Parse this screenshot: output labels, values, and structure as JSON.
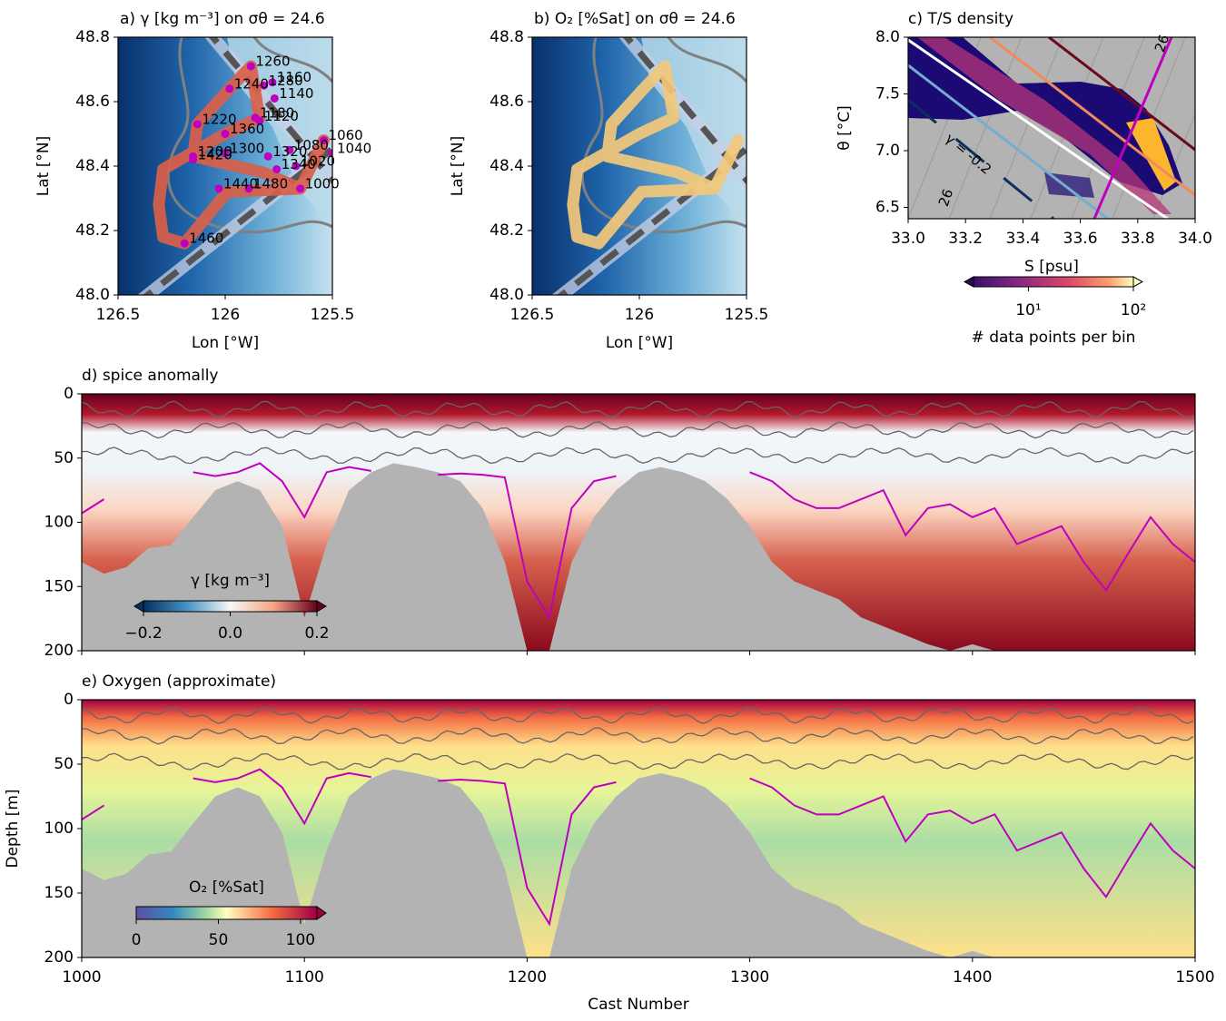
{
  "chart_data": [
    {
      "type": "map",
      "title": "a) γ [kg m⁻³] on σθ = 24.6",
      "xlabel": "Lon [°W]",
      "ylabel": "Lat [°N]",
      "xlim": [
        126.5,
        125.5
      ],
      "xticks": [
        126.5,
        126,
        125.5
      ],
      "ylim": [
        48.0,
        48.8
      ],
      "yticks": [
        {
          "value": 48,
          "label": "48.0"
        },
        48.2,
        48.4,
        48.6,
        48.8
      ],
      "track": {
        "color": "#d9604a",
        "x": [
          125.54,
          125.65,
          125.82,
          126.15,
          126.13,
          125.98,
          125.88,
          125.84,
          126.0,
          126.29,
          126.31,
          126.29,
          126.19,
          125.99,
          125.65
        ],
        "y": [
          48.48,
          48.33,
          48.38,
          48.43,
          48.53,
          48.64,
          48.71,
          48.55,
          48.5,
          48.39,
          48.28,
          48.18,
          48.16,
          48.32,
          48.33
        ]
      },
      "points": {
        "color": "#c000c0",
        "labels": [
          "1260",
          "1280",
          "1240",
          "1160",
          "1140",
          "1180",
          "1120",
          "1220",
          "1360",
          "1060",
          "1080",
          "1040",
          "1200",
          "1420",
          "1320",
          "1300",
          "1020",
          "1340",
          "1440",
          "1480",
          "1000",
          "1460"
        ],
        "x": [
          125.88,
          125.82,
          125.98,
          125.78,
          125.77,
          125.86,
          125.84,
          126.13,
          126.0,
          125.54,
          125.7,
          125.5,
          126.15,
          126.15,
          125.8,
          126.0,
          125.67,
          125.76,
          126.03,
          125.89,
          125.65,
          126.19
        ],
        "y": [
          48.71,
          48.65,
          48.64,
          48.66,
          48.61,
          48.55,
          48.54,
          48.53,
          48.5,
          48.48,
          48.45,
          48.44,
          48.43,
          48.42,
          48.43,
          48.44,
          48.4,
          48.39,
          48.33,
          48.33,
          48.33,
          48.16
        ]
      }
    },
    {
      "type": "map",
      "title": "b) O₂ [%Sat] on σθ = 24.6",
      "xlabel": "Lon [°W]",
      "ylabel": "Lat [°N]",
      "xlim": [
        126.5,
        125.5
      ],
      "xticks": [
        126.5,
        126,
        125.5
      ],
      "ylim": [
        48.0,
        48.8
      ],
      "yticks": [
        {
          "value": 48,
          "label": "48.0"
        },
        48.2,
        48.4,
        48.6,
        48.8
      ],
      "track": {
        "color": "#f3c87a",
        "x": [
          125.54,
          125.65,
          125.82,
          126.15,
          126.13,
          125.98,
          125.88,
          125.84,
          126.0,
          126.29,
          126.31,
          126.29,
          126.19,
          125.99,
          125.65
        ],
        "y": [
          48.48,
          48.33,
          48.38,
          48.43,
          48.53,
          48.64,
          48.71,
          48.55,
          48.5,
          48.39,
          48.28,
          48.18,
          48.16,
          48.32,
          48.33
        ]
      }
    },
    {
      "type": "histogram2d",
      "title": "c) T/S density",
      "xlabel": "S [psu]",
      "ylabel": "θ [°C]",
      "xlim": [
        33,
        34
      ],
      "xticks": [
        {
          "value": 33,
          "label": "33.0"
        },
        33.2,
        33.4,
        33.6,
        33.8,
        {
          "value": 34,
          "label": "34.0"
        }
      ],
      "ylim": [
        6.4,
        8.0
      ],
      "yticks": [
        6.5,
        {
          "value": 7,
          "label": "7.0"
        },
        7.5,
        {
          "value": 8,
          "label": "8.0"
        }
      ],
      "annotations": [
        "26",
        "γ = -0.2",
        "26"
      ],
      "colorbar": {
        "label": "# data points per bin",
        "log": true,
        "lim": [
          3,
          100
        ],
        "ticks": [
          {
            "value": 10,
            "label": "10¹"
          },
          {
            "value": 100,
            "label": "10²"
          }
        ]
      }
    },
    {
      "type": "section",
      "title": "d) spice anomally",
      "xticklabels": false,
      "xlim": [
        1000,
        1500
      ],
      "xticks": [
        1000,
        1100,
        1200,
        1300,
        1400,
        1500
      ],
      "ylim": [
        200,
        0
      ],
      "yticks": [
        0,
        50,
        100,
        150,
        200
      ],
      "x": [
        1000,
        1010,
        1020,
        1030,
        1040,
        1050,
        1060,
        1070,
        1080,
        1090,
        1100,
        1110,
        1120,
        1130,
        1140,
        1150,
        1160,
        1170,
        1180,
        1190,
        1200,
        1210,
        1220,
        1230,
        1240,
        1250,
        1260,
        1270,
        1280,
        1290,
        1300,
        1310,
        1320,
        1330,
        1340,
        1350,
        1360,
        1370,
        1380,
        1390,
        1400,
        1410,
        1420,
        1430,
        1440,
        1450,
        1460,
        1470,
        1480,
        1490,
        1500
      ],
      "bottom": [
        131,
        140,
        135,
        120,
        118,
        96,
        75,
        68,
        75,
        103,
        174,
        117,
        75,
        61,
        54,
        57,
        61,
        68,
        89,
        131,
        200,
        200,
        131,
        96,
        75,
        61,
        57,
        61,
        68,
        82,
        103,
        131,
        146,
        153,
        160,
        174,
        181,
        188,
        195,
        200,
        195,
        200,
        200,
        200,
        200,
        200,
        200,
        200,
        200,
        200,
        200
      ],
      "isopycnal": [
        93,
        82,
        null,
        null,
        null,
        61,
        64,
        61,
        54,
        68,
        96,
        61,
        57,
        60,
        null,
        null,
        63,
        62,
        63,
        65,
        146,
        174,
        89,
        68,
        64,
        null,
        null,
        null,
        null,
        null,
        61,
        68,
        82,
        89,
        89,
        82,
        75,
        110,
        89,
        86,
        96,
        89,
        117,
        110,
        103,
        131,
        153,
        124,
        96,
        117,
        131
      ],
      "isopycnal_color": "#c000c0",
      "colorbar": {
        "label": "γ [kg m⁻³]",
        "lim": [
          -0.2,
          0.2
        ],
        "ticks": [
          {
            "value": -0.2,
            "label": "−0.2"
          },
          {
            "value": 0,
            "label": "0.0"
          },
          0.2
        ]
      }
    },
    {
      "type": "section",
      "title": "e) Oxygen (approximate)",
      "xlabel": "Cast Number",
      "ylabel": "Depth [m]",
      "xlim": [
        1000,
        1500
      ],
      "xticks": [
        1000,
        1100,
        1200,
        1300,
        1400,
        1500
      ],
      "ylim": [
        200,
        0
      ],
      "yticks": [
        0,
        50,
        100,
        150,
        200
      ],
      "x": [
        1000,
        1010,
        1020,
        1030,
        1040,
        1050,
        1060,
        1070,
        1080,
        1090,
        1100,
        1110,
        1120,
        1130,
        1140,
        1150,
        1160,
        1170,
        1180,
        1190,
        1200,
        1210,
        1220,
        1230,
        1240,
        1250,
        1260,
        1270,
        1280,
        1290,
        1300,
        1310,
        1320,
        1330,
        1340,
        1350,
        1360,
        1370,
        1380,
        1390,
        1400,
        1410,
        1420,
        1430,
        1440,
        1450,
        1460,
        1470,
        1480,
        1490,
        1500
      ],
      "bottom": [
        131,
        140,
        135,
        120,
        118,
        96,
        75,
        68,
        75,
        103,
        174,
        117,
        75,
        61,
        54,
        57,
        61,
        68,
        89,
        131,
        200,
        200,
        131,
        96,
        75,
        61,
        57,
        61,
        68,
        82,
        103,
        131,
        146,
        153,
        160,
        174,
        181,
        188,
        195,
        200,
        195,
        200,
        200,
        200,
        200,
        200,
        200,
        200,
        200,
        200,
        200
      ],
      "isopycnal": [
        93,
        82,
        null,
        null,
        null,
        61,
        64,
        61,
        54,
        68,
        96,
        61,
        57,
        60,
        null,
        null,
        63,
        62,
        63,
        65,
        146,
        174,
        89,
        68,
        64,
        null,
        null,
        null,
        null,
        null,
        61,
        68,
        82,
        89,
        89,
        82,
        75,
        110,
        89,
        86,
        96,
        89,
        117,
        110,
        103,
        131,
        153,
        124,
        96,
        117,
        131
      ],
      "isopycnal_color": "#c000c0",
      "colorbar": {
        "label": "O₂ [%Sat]",
        "lim": [
          0,
          110
        ],
        "ticks": [
          0,
          50,
          100
        ]
      }
    }
  ]
}
